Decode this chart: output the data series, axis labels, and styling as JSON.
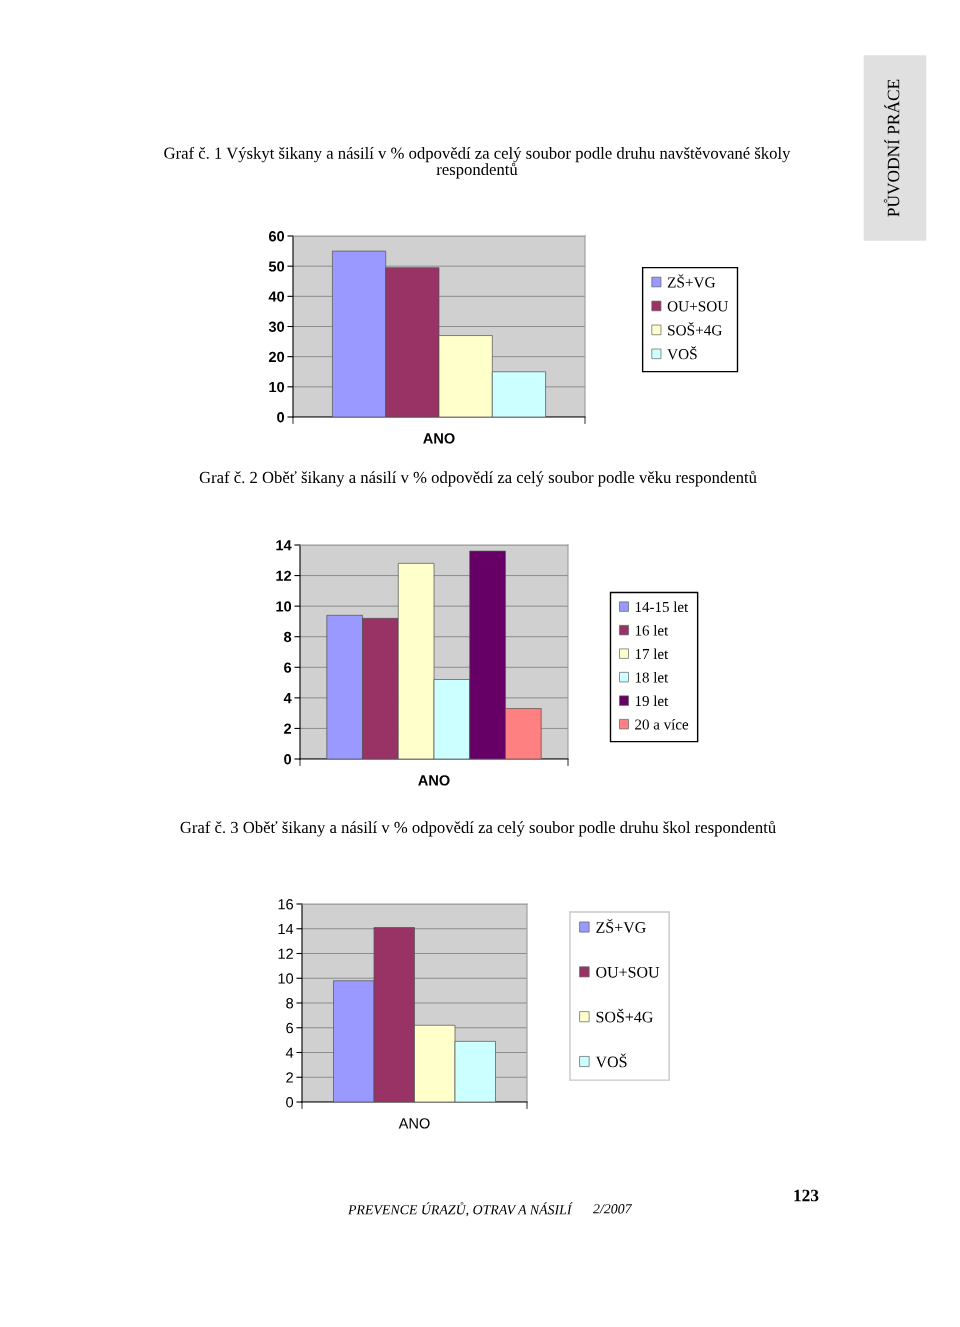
{
  "chart_data": [
    {
      "type": "bar",
      "title": "Graf č. 1 Výskyt šikany a násilí v % odpovědí za celý soubor podle druhu navštěvované školy\nrespondentů",
      "categories": [
        null
      ],
      "xlabel": "ANO",
      "series": [
        {
          "name": "ZŠ+VG",
          "color": "#9999ff",
          "values": [
            55
          ]
        },
        {
          "name": "OU+SOU",
          "color": "#993366",
          "values": [
            49.5
          ]
        },
        {
          "name": "SOŠ+4G",
          "color": "#ffffcc",
          "values": [
            27
          ]
        },
        {
          "name": "VOŠ",
          "color": "#ccffff",
          "values": [
            15
          ]
        }
      ],
      "ylim": [
        0,
        60
      ],
      "yticks": [
        0,
        10,
        20,
        30,
        40,
        50,
        60
      ],
      "grid": "y",
      "legend": "right",
      "annotations": [
        "PŮVODNÍ PRÁCE"
      ]
    },
    {
      "type": "bar",
      "title": "Graf č. 2 Oběť šikany a násilí v % odpovědí za celý soubor podle věku respondentů",
      "categories": [
        null
      ],
      "xlabel": "ANO",
      "series": [
        {
          "name": "14-15 let",
          "color": "#9999ff",
          "values": [
            9.4
          ]
        },
        {
          "name": "16 let",
          "color": "#993366",
          "values": [
            9.2
          ]
        },
        {
          "name": "17 let",
          "color": "#ffffcc",
          "values": [
            12.8
          ]
        },
        {
          "name": "18 let",
          "color": "#ccffff",
          "values": [
            5.2
          ]
        },
        {
          "name": "19 let",
          "color": "#660066",
          "values": [
            13.6
          ]
        },
        {
          "name": "20 a více",
          "color": "#ff8080",
          "values": [
            3.3
          ]
        }
      ],
      "ylim": [
        0,
        14
      ],
      "yticks": [
        0,
        2,
        4,
        6,
        8,
        10,
        12,
        14
      ],
      "grid": "y",
      "legend": "right"
    },
    {
      "type": "bar",
      "title": "Graf č. 3 Oběť šikany a násilí v % odpovědí za celý soubor podle druhu škol respondentů",
      "categories": [
        null
      ],
      "xlabel": "ANO",
      "series": [
        {
          "name": "ZŠ+VG",
          "color": "#9999ff",
          "values": [
            9.8
          ]
        },
        {
          "name": "OU+SOU",
          "color": "#993366",
          "values": [
            14.1
          ]
        },
        {
          "name": "SOŠ+4G",
          "color": "#ffffcc",
          "values": [
            6.2
          ]
        },
        {
          "name": "VOŠ",
          "color": "#ccffff",
          "values": [
            4.9
          ]
        }
      ],
      "ylim": [
        0,
        16
      ],
      "yticks": [
        0,
        2,
        4,
        6,
        8,
        10,
        12,
        14,
        16
      ],
      "grid": "y",
      "legend": "right",
      "annotations": [
        "PREVENCE ÚRAZŮ, OTRAV A NÁSILÍ",
        "2/2007",
        "123"
      ]
    }
  ]
}
